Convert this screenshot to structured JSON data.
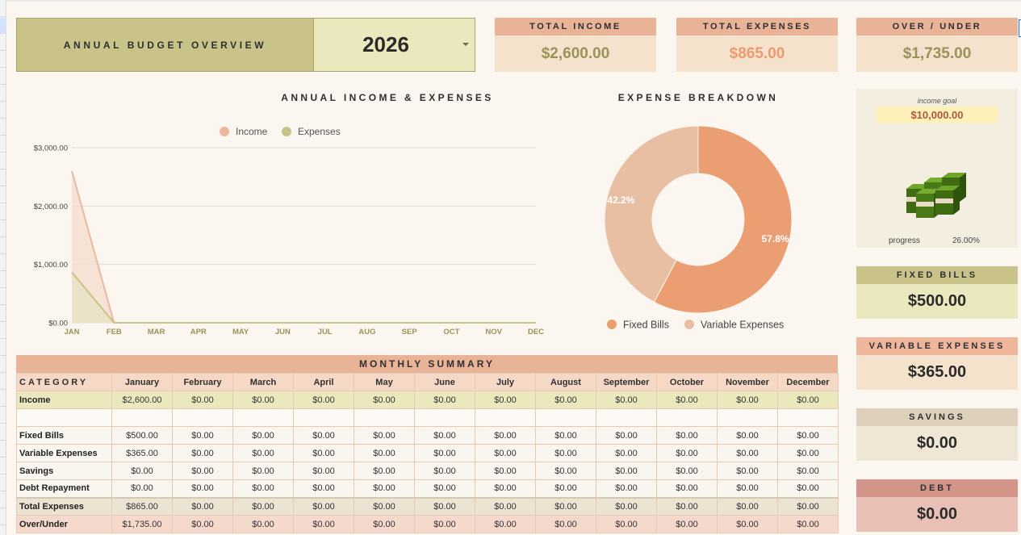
{
  "header": {
    "title": "ANNUAL BUDGET OVERVIEW",
    "year": "2026"
  },
  "kpis": {
    "income": {
      "label": "TOTAL INCOME",
      "value": "$2,600.00",
      "color": "#9a9357"
    },
    "expenses": {
      "label": "TOTAL EXPENSES",
      "value": "$865.00",
      "color": "#eb9a6e"
    },
    "over_under": {
      "label": "OVER / UNDER",
      "value": "$1,735.00",
      "color": "#9a9357"
    }
  },
  "goal": {
    "label": "income goal",
    "value": "$10,000.00",
    "progress_label": "progress",
    "progress_value": "26.00%",
    "icon": "money-stacks-icon"
  },
  "side_cards": {
    "fixed_bills": {
      "label": "FIXED BILLS",
      "value": "$500.00"
    },
    "variable_expenses": {
      "label": "VARIABLE EXPENSES",
      "value": "$365.00"
    },
    "savings": {
      "label": "SAVINGS",
      "value": "$0.00"
    },
    "debt": {
      "label": "DEBT",
      "value": "$0.00"
    }
  },
  "colors": {
    "income": "#ebb89f",
    "expenses": "#c9c389",
    "fixed_bills": "#eb9e71",
    "variable_expenses": "#e9bfa4"
  },
  "chart_data": [
    {
      "type": "area",
      "title": "ANNUAL INCOME & EXPENSES",
      "categories": [
        "JAN",
        "FEB",
        "MAR",
        "APR",
        "MAY",
        "JUN",
        "JUL",
        "AUG",
        "SEP",
        "OCT",
        "NOV",
        "DEC"
      ],
      "series": [
        {
          "name": "Income",
          "values": [
            2600,
            0,
            0,
            0,
            0,
            0,
            0,
            0,
            0,
            0,
            0,
            0
          ]
        },
        {
          "name": "Expenses",
          "values": [
            865,
            0,
            0,
            0,
            0,
            0,
            0,
            0,
            0,
            0,
            0,
            0
          ]
        }
      ],
      "ylim": [
        0,
        3000
      ],
      "yticks": [
        "$0.00",
        "$1,000.00",
        "$2,000.00",
        "$3,000.00"
      ],
      "grid": true,
      "legend": "top"
    },
    {
      "type": "pie",
      "title": "EXPENSE BREAKDOWN",
      "categories": [
        "Fixed Bills",
        "Variable Expenses"
      ],
      "values": [
        57.8,
        42.2
      ],
      "labels": [
        "57.8%",
        "42.2%"
      ],
      "legend": "bottom"
    }
  ],
  "table": {
    "title": "MONTHLY SUMMARY",
    "category_header": "CATEGORY",
    "months": [
      "January",
      "February",
      "March",
      "April",
      "May",
      "June",
      "July",
      "August",
      "September",
      "October",
      "November",
      "December"
    ],
    "rows": [
      {
        "label": "Income",
        "values": [
          "$2,600.00",
          "$0.00",
          "$0.00",
          "$0.00",
          "$0.00",
          "$0.00",
          "$0.00",
          "$0.00",
          "$0.00",
          "$0.00",
          "$0.00",
          "$0.00"
        ]
      },
      {
        "label": "",
        "values": [
          "",
          "",
          "",
          "",
          "",
          "",
          "",
          "",
          "",
          "",
          "",
          ""
        ]
      },
      {
        "label": "Fixed Bills",
        "values": [
          "$500.00",
          "$0.00",
          "$0.00",
          "$0.00",
          "$0.00",
          "$0.00",
          "$0.00",
          "$0.00",
          "$0.00",
          "$0.00",
          "$0.00",
          "$0.00"
        ]
      },
      {
        "label": "Variable Expenses",
        "values": [
          "$365.00",
          "$0.00",
          "$0.00",
          "$0.00",
          "$0.00",
          "$0.00",
          "$0.00",
          "$0.00",
          "$0.00",
          "$0.00",
          "$0.00",
          "$0.00"
        ]
      },
      {
        "label": "Savings",
        "values": [
          "$0.00",
          "$0.00",
          "$0.00",
          "$0.00",
          "$0.00",
          "$0.00",
          "$0.00",
          "$0.00",
          "$0.00",
          "$0.00",
          "$0.00",
          "$0.00"
        ]
      },
      {
        "label": "Debt Repayment",
        "values": [
          "$0.00",
          "$0.00",
          "$0.00",
          "$0.00",
          "$0.00",
          "$0.00",
          "$0.00",
          "$0.00",
          "$0.00",
          "$0.00",
          "$0.00",
          "$0.00"
        ]
      },
      {
        "label": "Total Expenses",
        "values": [
          "$865.00",
          "$0.00",
          "$0.00",
          "$0.00",
          "$0.00",
          "$0.00",
          "$0.00",
          "$0.00",
          "$0.00",
          "$0.00",
          "$0.00",
          "$0.00"
        ]
      },
      {
        "label": "Over/Under",
        "values": [
          "$1,735.00",
          "$0.00",
          "$0.00",
          "$0.00",
          "$0.00",
          "$0.00",
          "$0.00",
          "$0.00",
          "$0.00",
          "$0.00",
          "$0.00",
          "$0.00"
        ]
      }
    ]
  }
}
